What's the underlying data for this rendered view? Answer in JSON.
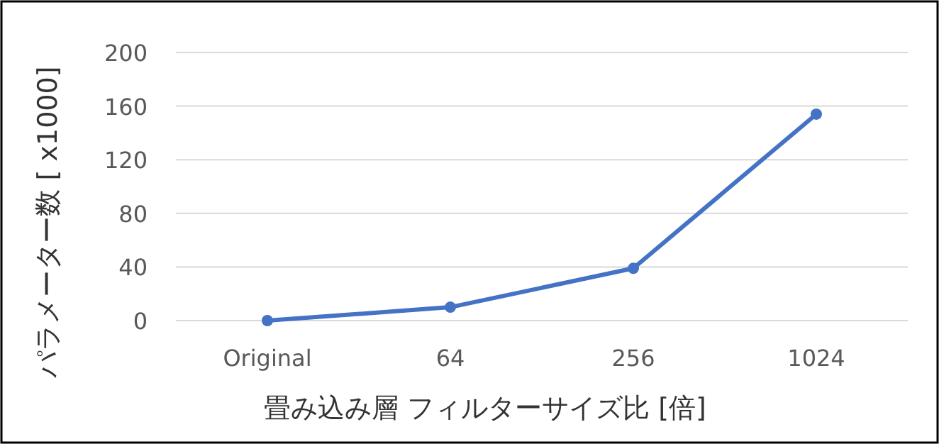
{
  "chart_data": {
    "type": "line",
    "xlabel": "畳み込み層 フィルターサイズ比 [倍]",
    "ylabel": "パラメーター数 [ x1000]",
    "categories": [
      "Original",
      "64",
      "256",
      "1024"
    ],
    "series": [
      {
        "color": "#4472c4",
        "values": [
          0,
          10,
          39,
          154
        ]
      }
    ],
    "ylim": [
      0,
      200
    ],
    "yticks": [
      0,
      40,
      80,
      120,
      160,
      200
    ],
    "grid": "y",
    "marker": "circle",
    "line_style": "solid"
  }
}
